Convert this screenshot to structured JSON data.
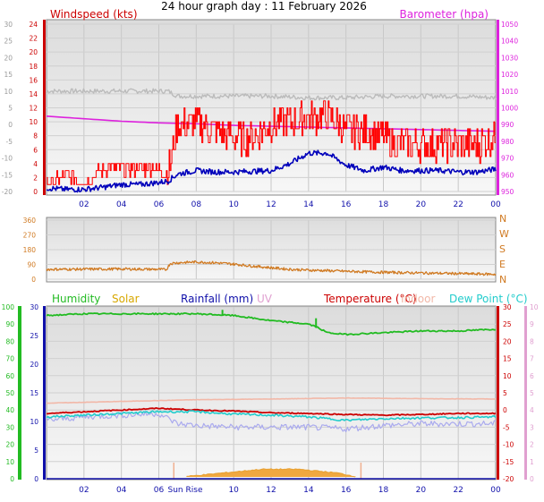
{
  "title": "24 hour graph day : 11 February 2026",
  "colors": {
    "wind_axis": "#cc0000",
    "baro": "#dd22dd",
    "dir": "#d07a22",
    "humidity": "#22bb22",
    "solar": "#d8a800",
    "rain": "#1010aa",
    "uv": "#e0a0d0",
    "temp": "#cc0000",
    "indoor": "#f2b8a8",
    "dew": "#22cccc",
    "gust": "#ff0000",
    "avg": "#0000bb",
    "gust_grey": "#bbbbbb",
    "chill": "#aaaaee",
    "left_axis_grey": "#999999"
  },
  "x_ticks": [
    "02",
    "04",
    "06",
    "08",
    "10",
    "12",
    "14",
    "16",
    "18",
    "20",
    "22",
    "00"
  ],
  "sunrise_label": "Sun Rise",
  "chart_data": [
    {
      "type": "line",
      "panel": "wind",
      "left_label": "Windspeed (kts)",
      "right_label": "Barometer (hpa)",
      "left_ticks": [
        "24",
        "22",
        "20",
        "18",
        "16",
        "14",
        "12",
        "10",
        "8",
        "6",
        "4",
        "2",
        "0"
      ],
      "right_ticks": [
        "1050",
        "1040",
        "1030",
        "1020",
        "1010",
        "1000",
        "990",
        "980",
        "970",
        "960",
        "950"
      ],
      "outer_left_ticks": [
        "30",
        "25",
        "20",
        "15",
        "10",
        "5",
        "0",
        "-5",
        "-10",
        "-15",
        "-20"
      ],
      "ylim_left": [
        0,
        24
      ],
      "ylim_right": [
        950,
        1050
      ],
      "series": [
        {
          "name": "Windspeed (kts)",
          "role": "gust",
          "x": [
            0,
            1,
            2,
            3,
            4,
            5,
            6,
            6.5,
            7,
            8,
            9,
            10,
            11,
            12,
            13,
            14,
            15,
            16,
            17,
            18,
            19,
            20,
            21,
            22,
            23,
            24
          ],
          "values": [
            1,
            2,
            1,
            3,
            3,
            3,
            3,
            2,
            9,
            9,
            8,
            7,
            7,
            9,
            9,
            10,
            10,
            8,
            8,
            7,
            6,
            6,
            6,
            6,
            6,
            7
          ]
        },
        {
          "role": "avg",
          "x": [
            0,
            1,
            2,
            3,
            4,
            5,
            6,
            6.5,
            7,
            8,
            9,
            10,
            11,
            12,
            13,
            14,
            15,
            16,
            17,
            18,
            19,
            20,
            21,
            22,
            23,
            24
          ],
          "values": [
            0.5,
            0.3,
            0.3,
            0.6,
            1,
            1,
            1.3,
            1.5,
            2.5,
            3,
            2.8,
            2.8,
            2.9,
            3,
            4,
            5.5,
            5.5,
            3.8,
            3,
            3.5,
            3,
            3,
            3,
            2.8,
            2.8,
            3.2
          ]
        },
        {
          "name": "Barometer (hpa)",
          "role": "pressure",
          "x": [
            0,
            2,
            4,
            6,
            8,
            10,
            12,
            14,
            16,
            18,
            20,
            22,
            24
          ],
          "values": [
            995,
            993.5,
            992,
            991,
            990.5,
            989.5,
            989,
            988.5,
            988,
            987.5,
            987,
            986.5,
            986
          ]
        },
        {
          "role": "outer",
          "x": [
            0,
            2,
            4,
            6,
            6.5,
            7,
            8,
            10,
            12,
            14,
            16,
            18,
            20,
            22,
            24
          ],
          "values": [
            10,
            10,
            10,
            10,
            10,
            8.5,
            8.5,
            8.5,
            8.5,
            8,
            8,
            8.5,
            8.5,
            8.5,
            8
          ]
        }
      ]
    },
    {
      "type": "line",
      "panel": "direction",
      "left_ticks": [
        "360",
        "270",
        "180",
        "90",
        "0"
      ],
      "right_ticks": [
        "N",
        "W",
        "S",
        "E",
        "N"
      ],
      "ylim": [
        0,
        360
      ],
      "series": [
        {
          "role": "direction",
          "x": [
            0,
            2,
            4,
            6,
            6.4,
            6.6,
            7,
            8,
            9,
            10,
            11,
            12,
            13,
            14,
            15,
            16,
            17,
            18,
            19,
            20,
            21,
            22,
            23,
            24
          ],
          "values": [
            60,
            61,
            62,
            60,
            58,
            95,
            100,
            105,
            100,
            92,
            80,
            70,
            60,
            55,
            52,
            48,
            45,
            42,
            40,
            38,
            36,
            34,
            32,
            30
          ]
        }
      ]
    },
    {
      "type": "line",
      "panel": "thermo",
      "legend": [
        {
          "label": "Humidity",
          "color": "#22bb22"
        },
        {
          "label": "Solar",
          "color": "#d8a800"
        },
        {
          "label": "Rainfall (mm)",
          "color": "#1010aa"
        },
        {
          "label": "UV",
          "color": "#e0a0d0"
        },
        {
          "label": "Temperature (°C)",
          "color": "#cc0000"
        },
        {
          "label": "Indoor",
          "color": "#f2b8a8"
        },
        {
          "label": "Dew Point (°C)",
          "color": "#22cccc"
        }
      ],
      "humidity_ticks": [
        "100",
        "90",
        "80",
        "70",
        "60",
        "50",
        "40",
        "30",
        "20",
        "10",
        "0"
      ],
      "rain_ticks": [
        "30",
        "25",
        "20",
        "15",
        "10",
        "5",
        "0"
      ],
      "temp_ticks": [
        "30",
        "25",
        "20",
        "15",
        "10",
        "5",
        "0",
        "-5",
        "-10",
        "-15",
        "-20"
      ],
      "uv_ticks": [
        "10",
        "9",
        "8",
        "7",
        "6",
        "5",
        "4",
        "3",
        "2",
        "1",
        "0"
      ],
      "ylim_humidity": [
        0,
        100
      ],
      "ylim_temp": [
        -20,
        30
      ],
      "series": [
        {
          "name": "Humidity",
          "role": "humidity",
          "axis": "humidity",
          "x": [
            0,
            2,
            4,
            6,
            8,
            10,
            12,
            13,
            14,
            14.5,
            15,
            16,
            18,
            20,
            22,
            24
          ],
          "values": [
            95,
            96,
            96,
            96,
            96,
            95,
            92,
            91,
            90,
            88,
            85,
            84,
            85,
            86,
            86,
            87
          ]
        },
        {
          "name": "Solar",
          "role": "solar",
          "axis": "humidity",
          "x": [
            7.5,
            8.5,
            9.5,
            10.5,
            11.5,
            12.5,
            13.5,
            14.5,
            15.5,
            16.5
          ],
          "values": [
            0,
            1,
            2,
            3,
            4,
            4,
            4,
            3,
            2,
            0
          ]
        },
        {
          "name": "Rainfall (mm)",
          "role": "rain",
          "axis": "humidity",
          "x": [
            0,
            24
          ],
          "values": [
            0,
            0
          ]
        },
        {
          "name": "Indoor",
          "role": "indoor",
          "axis": "temp",
          "x": [
            0,
            4,
            8,
            12,
            16,
            20,
            24
          ],
          "values": [
            2,
            2.5,
            3,
            3.2,
            3.5,
            3.3,
            3.2
          ]
        },
        {
          "name": "Temperature (°C)",
          "role": "temp",
          "axis": "temp",
          "x": [
            0,
            2,
            4,
            6,
            8,
            10,
            12,
            14,
            16,
            18,
            20,
            22,
            24
          ],
          "values": [
            -1,
            -0.5,
            0,
            0.5,
            0,
            -0.3,
            -0.8,
            -1,
            -1.3,
            -1.5,
            -1.3,
            -1,
            -1
          ]
        },
        {
          "role": "chill",
          "axis": "temp",
          "x": [
            0,
            2,
            4,
            6,
            7,
            8,
            10,
            12,
            14,
            16,
            18,
            20,
            22,
            24
          ],
          "values": [
            -3,
            -2,
            -1.5,
            -1,
            -4,
            -4.5,
            -5,
            -5,
            -5,
            -5.5,
            -4.5,
            -4,
            -4,
            -4
          ]
        },
        {
          "name": "Dew Point (°C)",
          "role": "dew",
          "axis": "temp",
          "x": [
            0,
            2,
            4,
            6,
            8,
            10,
            12,
            14,
            16,
            18,
            20,
            22,
            24
          ],
          "values": [
            -2,
            -1.5,
            -1,
            -0.5,
            -0.5,
            -1.2,
            -1.5,
            -2,
            -3,
            -2.5,
            -2.3,
            -2.2,
            -2
          ]
        }
      ],
      "markers": [
        {
          "x": 6.8
        },
        {
          "x": 16.8
        }
      ]
    }
  ]
}
